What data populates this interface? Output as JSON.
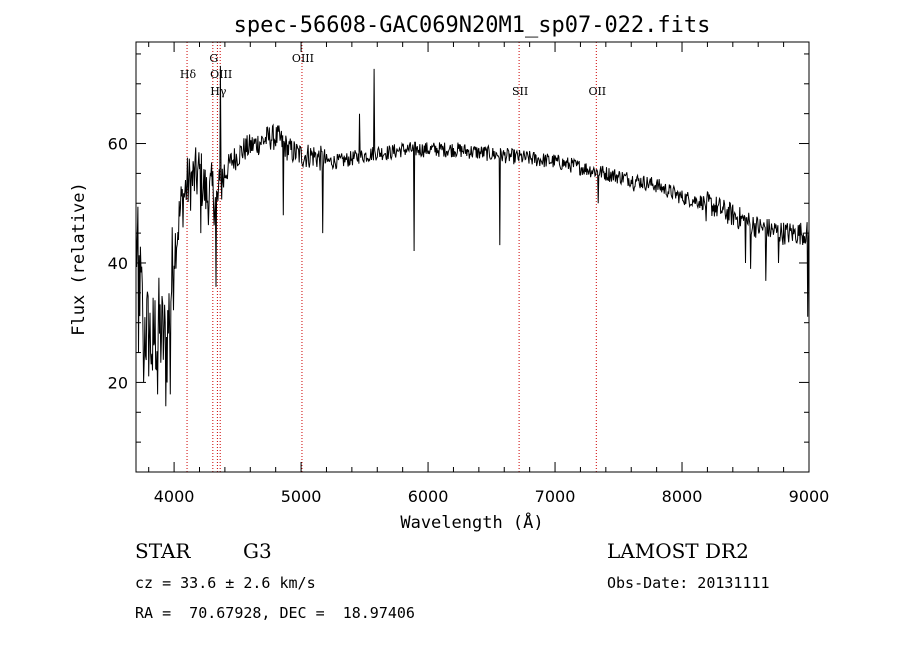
{
  "chart_data": {
    "type": "line",
    "title": "spec-56608-GAC069N20M1_sp07-022.fits",
    "xlabel": "Wavelength (Å)",
    "ylabel": "Flux (relative)",
    "xlim": [
      3700,
      9000
    ],
    "ylim": [
      5,
      77
    ],
    "xticks": [
      4000,
      5000,
      6000,
      7000,
      8000,
      9000
    ],
    "yticks": [
      20,
      40,
      60
    ],
    "grid": false,
    "line_color": "#000000",
    "marker_color": "#cc0000",
    "spectral_lines": [
      {
        "name": "Hδ",
        "wavelength": 4102,
        "row": 0
      },
      {
        "name": "G",
        "wavelength": 4305,
        "row": 1
      },
      {
        "name": "OIII",
        "wavelength": 4363,
        "row": 0
      },
      {
        "name": "Hγ",
        "wavelength": 4341,
        "row": -1
      },
      {
        "name": "OIII",
        "wavelength": 5007,
        "row": 1
      },
      {
        "name": "SII",
        "wavelength": 6717,
        "row": -1
      },
      {
        "name": "OII",
        "wavelength": 7325,
        "row": -1
      }
    ],
    "continuum": [
      [
        3700,
        44
      ],
      [
        3760,
        30
      ],
      [
        3820,
        27
      ],
      [
        3880,
        29
      ],
      [
        3940,
        26
      ],
      [
        4000,
        42
      ],
      [
        4060,
        50
      ],
      [
        4100,
        53
      ],
      [
        4150,
        54
      ],
      [
        4200,
        55
      ],
      [
        4260,
        51
      ],
      [
        4300,
        52
      ],
      [
        4340,
        50
      ],
      [
        4380,
        54
      ],
      [
        4450,
        57
      ],
      [
        4550,
        59
      ],
      [
        4650,
        60
      ],
      [
        4750,
        61
      ],
      [
        4820,
        61
      ],
      [
        4900,
        59
      ],
      [
        5000,
        58
      ],
      [
        5100,
        58
      ],
      [
        5200,
        57
      ],
      [
        5300,
        57
      ],
      [
        5400,
        57.5
      ],
      [
        5500,
        58
      ],
      [
        5600,
        58.5
      ],
      [
        5700,
        58.5
      ],
      [
        5800,
        59
      ],
      [
        5900,
        59
      ],
      [
        6000,
        59
      ],
      [
        6200,
        59
      ],
      [
        6400,
        58.5
      ],
      [
        6600,
        58
      ],
      [
        6800,
        57.5
      ],
      [
        7000,
        57
      ],
      [
        7200,
        56
      ],
      [
        7400,
        55
      ],
      [
        7600,
        54
      ],
      [
        7800,
        53
      ],
      [
        8000,
        51
      ],
      [
        8200,
        50
      ],
      [
        8400,
        48
      ],
      [
        8600,
        46
      ],
      [
        8800,
        45
      ],
      [
        8950,
        45
      ],
      [
        9000,
        45
      ]
    ],
    "features": [
      {
        "x": 3720,
        "y": 25,
        "type": "dip"
      },
      {
        "x": 3760,
        "y": 20,
        "type": "dip"
      },
      {
        "x": 3830,
        "y": 22,
        "type": "dip"
      },
      {
        "x": 3870,
        "y": 18,
        "type": "dip"
      },
      {
        "x": 3935,
        "y": 16,
        "type": "dip"
      },
      {
        "x": 3968,
        "y": 18,
        "type": "dip"
      },
      {
        "x": 4210,
        "y": 45,
        "type": "dip"
      },
      {
        "x": 4330,
        "y": 36,
        "type": "dip"
      },
      {
        "x": 4365,
        "y": 73,
        "type": "spike"
      },
      {
        "x": 4861,
        "y": 48,
        "type": "dip"
      },
      {
        "x": 5170,
        "y": 45,
        "type": "dip"
      },
      {
        "x": 5460,
        "y": 65,
        "type": "spike"
      },
      {
        "x": 5577,
        "y": 72.5,
        "type": "spike"
      },
      {
        "x": 5890,
        "y": 42,
        "type": "dip"
      },
      {
        "x": 6563,
        "y": 43,
        "type": "dip"
      },
      {
        "x": 7340,
        "y": 50,
        "type": "dip"
      },
      {
        "x": 7620,
        "y": 52,
        "type": "dip"
      },
      {
        "x": 8190,
        "y": 47,
        "type": "dip"
      },
      {
        "x": 8500,
        "y": 40,
        "type": "dip"
      },
      {
        "x": 8542,
        "y": 39,
        "type": "dip"
      },
      {
        "x": 8662,
        "y": 37,
        "type": "dip"
      },
      {
        "x": 8760,
        "y": 40,
        "type": "dip"
      },
      {
        "x": 8990,
        "y": 31,
        "type": "dip"
      }
    ]
  },
  "footer": {
    "object_class": "STAR",
    "subclass": "G3",
    "survey": "LAMOST DR2",
    "redshift": "cz = 33.6 ± 2.6 km/s",
    "obs_date": "Obs-Date: 20131111",
    "coords": "RA =  70.67928, DEC =  18.97406"
  }
}
